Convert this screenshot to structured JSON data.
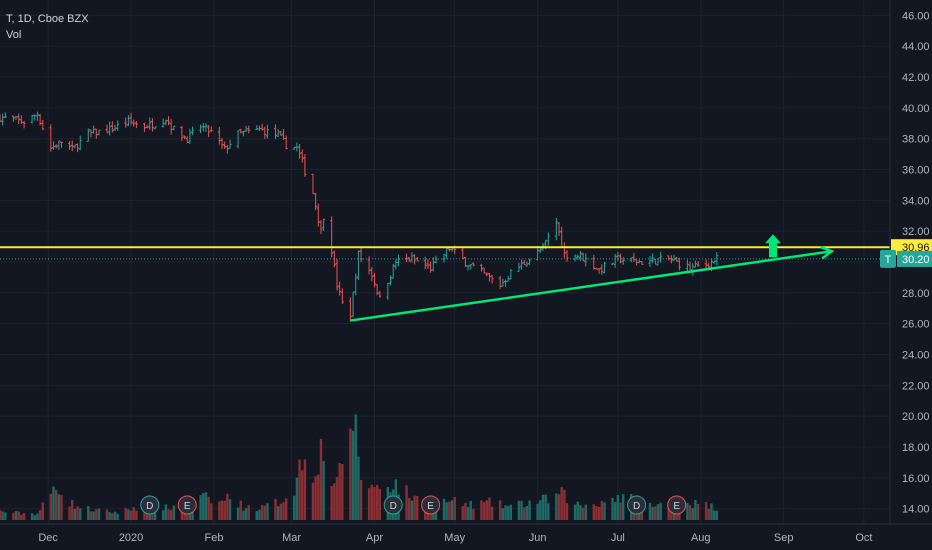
{
  "legend": {
    "symbol_line": "T, 1D, Cboe BZX",
    "volume_label": "Vol"
  },
  "colors": {
    "background": "#131722",
    "grid": "#1e2230",
    "axis_text": "#b2b5be",
    "up": "#26a69a",
    "down": "#ef5350",
    "vol_up": "#1e6b66",
    "vol_down": "#8a3034",
    "resistance": "#ffeb3b",
    "support": "#00e676",
    "current": "#26a69a",
    "event_bg": "#2a2e39",
    "event_text": "#d1d4dc"
  },
  "chart_data": {
    "type": "candlestick",
    "title": "T, 1D, Cboe BZX",
    "ylim": [
      13,
      47
    ],
    "y_ticks": [
      "46.00",
      "44.00",
      "42.00",
      "40.00",
      "38.00",
      "36.00",
      "34.00",
      "32.00",
      "30.00",
      "28.00",
      "26.00",
      "24.00",
      "22.00",
      "20.00",
      "18.00",
      "16.00",
      "14.00"
    ],
    "x_labels": [
      {
        "date": "2019-12-01",
        "label": "Dec"
      },
      {
        "date": "2020-01-01",
        "label": "2020"
      },
      {
        "date": "2020-02-01",
        "label": "Feb"
      },
      {
        "date": "2020-03-01",
        "label": "Mar"
      },
      {
        "date": "2020-04-01",
        "label": "Apr"
      },
      {
        "date": "2020-05-01",
        "label": "May"
      },
      {
        "date": "2020-06-01",
        "label": "Jun"
      },
      {
        "date": "2020-07-01",
        "label": "Jul"
      },
      {
        "date": "2020-08-01",
        "label": "Aug"
      },
      {
        "date": "2020-09-01",
        "label": "Sep"
      },
      {
        "date": "2020-10-01",
        "label": "Oct"
      }
    ],
    "xlim": [
      "2019-11-13",
      "2020-10-10"
    ],
    "price_path": [
      [
        "2019-11-13",
        39.4
      ],
      [
        "2019-11-22",
        39.1
      ],
      [
        "2019-11-27",
        39.6
      ],
      [
        "2019-12-02",
        37.4
      ],
      [
        "2019-12-06",
        37.8
      ],
      [
        "2019-12-10",
        37.3
      ],
      [
        "2019-12-16",
        38.3
      ],
      [
        "2019-12-24",
        38.6
      ],
      [
        "2019-12-31",
        39.1
      ],
      [
        "2020-01-06",
        38.8
      ],
      [
        "2020-01-10",
        39.0
      ],
      [
        "2020-01-14",
        39.3
      ],
      [
        "2020-01-17",
        38.6
      ],
      [
        "2020-01-22",
        38.0
      ],
      [
        "2020-01-27",
        38.8
      ],
      [
        "2020-01-31",
        38.4
      ],
      [
        "2020-02-05",
        37.3
      ],
      [
        "2020-02-10",
        38.3
      ],
      [
        "2020-02-18",
        38.6
      ],
      [
        "2020-02-25",
        38.2
      ],
      [
        "2020-02-28",
        37.6
      ],
      [
        "2020-03-03",
        37.4
      ],
      [
        "2020-03-05",
        36.5
      ],
      [
        "2020-03-06",
        35.9
      ],
      [
        "2020-03-09",
        34.5
      ],
      [
        "2020-03-12",
        32.0
      ],
      [
        "2020-03-13",
        33.0
      ],
      [
        "2020-03-16",
        30.8
      ],
      [
        "2020-03-18",
        28.5
      ],
      [
        "2020-03-20",
        27.3
      ],
      [
        "2020-03-23",
        26.6
      ],
      [
        "2020-03-26",
        30.5
      ],
      [
        "2020-03-31",
        29.2
      ],
      [
        "2020-04-03",
        27.6
      ],
      [
        "2020-04-09",
        30.0
      ],
      [
        "2020-04-15",
        30.2
      ],
      [
        "2020-04-22",
        29.6
      ],
      [
        "2020-04-29",
        30.9
      ],
      [
        "2020-05-05",
        30.0
      ],
      [
        "2020-05-12",
        29.2
      ],
      [
        "2020-05-18",
        28.5
      ],
      [
        "2020-05-22",
        29.3
      ],
      [
        "2020-05-29",
        30.2
      ],
      [
        "2020-06-03",
        30.9
      ],
      [
        "2020-06-08",
        32.6
      ],
      [
        "2020-06-11",
        30.5
      ],
      [
        "2020-06-17",
        30.4
      ],
      [
        "2020-06-24",
        29.5
      ],
      [
        "2020-07-01",
        30.2
      ],
      [
        "2020-07-10",
        30.0
      ],
      [
        "2020-07-20",
        30.2
      ],
      [
        "2020-07-28",
        29.6
      ],
      [
        "2020-08-04",
        29.9
      ],
      [
        "2020-08-07",
        30.2
      ]
    ],
    "volume": {
      "ylim": [
        0,
        2300
      ],
      "points": [
        [
          "2019-11-13",
          150
        ],
        [
          "2019-11-20",
          120
        ],
        [
          "2019-11-27",
          110
        ],
        [
          "2019-12-03",
          520
        ],
        [
          "2019-12-05",
          600
        ],
        [
          "2019-12-09",
          300
        ],
        [
          "2019-12-13",
          220
        ],
        [
          "2019-12-20",
          160
        ],
        [
          "2019-12-27",
          130
        ],
        [
          "2020-01-03",
          230
        ],
        [
          "2020-01-08",
          260
        ],
        [
          "2020-01-15",
          200
        ],
        [
          "2020-01-22",
          340
        ],
        [
          "2020-01-28",
          390
        ],
        [
          "2020-02-03",
          300
        ],
        [
          "2020-02-07",
          410
        ],
        [
          "2020-02-12",
          230
        ],
        [
          "2020-02-19",
          210
        ],
        [
          "2020-02-26",
          330
        ],
        [
          "2020-03-02",
          560
        ],
        [
          "2020-03-05",
          1080
        ],
        [
          "2020-03-09",
          870
        ],
        [
          "2020-03-12",
          1200
        ],
        [
          "2020-03-16",
          700
        ],
        [
          "2020-03-20",
          800
        ],
        [
          "2020-03-24",
          1900
        ],
        [
          "2020-03-27",
          750
        ],
        [
          "2020-04-01",
          550
        ],
        [
          "2020-04-08",
          650
        ],
        [
          "2020-04-15",
          400
        ],
        [
          "2020-04-22",
          280
        ],
        [
          "2020-04-29",
          330
        ],
        [
          "2020-05-06",
          260
        ],
        [
          "2020-05-14",
          300
        ],
        [
          "2020-05-21",
          240
        ],
        [
          "2020-05-29",
          300
        ],
        [
          "2020-06-05",
          360
        ],
        [
          "2020-06-10",
          450
        ],
        [
          "2020-06-17",
          240
        ],
        [
          "2020-06-24",
          300
        ],
        [
          "2020-06-30",
          400
        ],
        [
          "2020-07-08",
          340
        ],
        [
          "2020-07-15",
          230
        ],
        [
          "2020-07-22",
          350
        ],
        [
          "2020-07-29",
          290
        ],
        [
          "2020-08-04",
          250
        ],
        [
          "2020-08-07",
          220
        ]
      ]
    },
    "resistance_line": {
      "value": 30.96,
      "label": "30.96"
    },
    "current_price": {
      "value": 30.2,
      "label": "30.20",
      "symbol": "T"
    },
    "trendline": {
      "from": [
        "2020-03-23",
        26.2
      ],
      "to": [
        "2020-09-19",
        30.7
      ]
    },
    "breakout_arrow": {
      "date": "2020-08-28",
      "from": 30.3,
      "to": 31.8
    },
    "events": [
      {
        "date": "2020-01-08",
        "label": "D"
      },
      {
        "date": "2020-01-22",
        "label": "E"
      },
      {
        "date": "2020-04-08",
        "label": "D"
      },
      {
        "date": "2020-04-22",
        "label": "E"
      },
      {
        "date": "2020-07-08",
        "label": "D"
      },
      {
        "date": "2020-07-23",
        "label": "E"
      }
    ]
  }
}
